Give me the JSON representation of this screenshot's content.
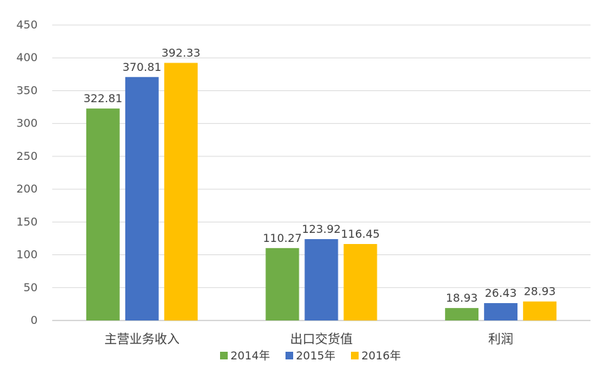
{
  "chart_data": {
    "type": "bar",
    "categories": [
      "主营业务收入",
      "出口交货值",
      "利润"
    ],
    "series": [
      {
        "name": "2014年",
        "color": "#70ad47",
        "values": [
          322.81,
          110.27,
          18.93
        ]
      },
      {
        "name": "2015年",
        "color": "#4472c4",
        "values": [
          370.81,
          123.92,
          26.43
        ]
      },
      {
        "name": "2016年",
        "color": "#ffc000",
        "values": [
          392.33,
          116.45,
          28.93
        ]
      }
    ],
    "data_labels": [
      [
        "322.81",
        "110.27",
        "18.93"
      ],
      [
        "370.81",
        "123.92",
        "26.43"
      ],
      [
        "392.33",
        "116.45",
        "28.93"
      ]
    ],
    "ylim": [
      0,
      450
    ],
    "yticks": [
      0,
      50,
      100,
      150,
      200,
      250,
      300,
      350,
      400,
      450
    ],
    "grid": true,
    "legend_position": "bottom"
  }
}
